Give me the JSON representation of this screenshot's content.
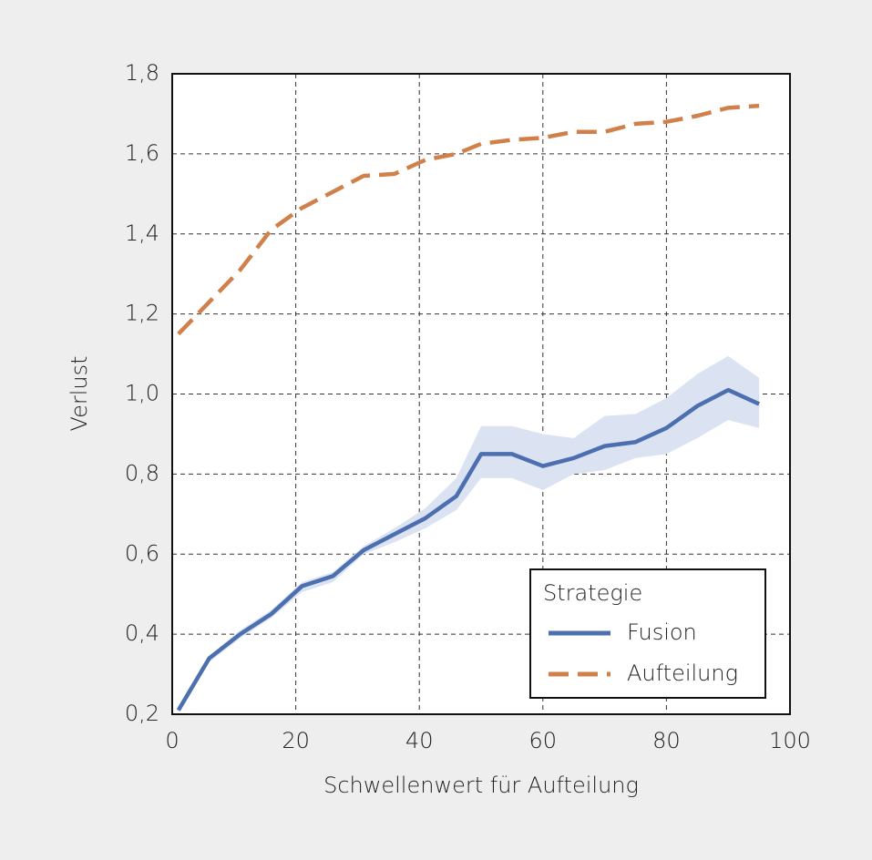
{
  "chart_data": {
    "type": "line",
    "x_label": "Schwellenwert für Aufteilung",
    "y_label": "Verlust",
    "x": [
      1,
      6,
      11,
      16,
      21,
      26,
      31,
      36,
      41,
      46,
      50,
      55,
      60,
      65,
      70,
      75,
      80,
      85,
      90,
      95
    ],
    "series": [
      {
        "name": "Fusion",
        "color": "#4c6faf",
        "dash": false,
        "band_color": "#dbe2f2",
        "values": [
          0.21,
          0.34,
          0.4,
          0.45,
          0.52,
          0.545,
          0.61,
          0.65,
          0.69,
          0.745,
          0.85,
          0.85,
          0.82,
          0.84,
          0.87,
          0.88,
          0.915,
          0.97,
          1.01,
          0.975
        ],
        "lower": [
          0.21,
          0.33,
          0.39,
          0.44,
          0.505,
          0.53,
          0.6,
          0.63,
          0.665,
          0.71,
          0.79,
          0.79,
          0.76,
          0.8,
          0.81,
          0.84,
          0.85,
          0.89,
          0.935,
          0.915
        ],
        "upper": [
          0.21,
          0.345,
          0.41,
          0.46,
          0.53,
          0.555,
          0.62,
          0.665,
          0.715,
          0.79,
          0.92,
          0.92,
          0.9,
          0.89,
          0.945,
          0.95,
          0.99,
          1.05,
          1.095,
          1.04
        ]
      },
      {
        "name": "Aufteilung",
        "color": "#d0804a",
        "dash": true,
        "values": [
          1.15,
          1.23,
          1.31,
          1.41,
          1.465,
          1.505,
          1.545,
          1.55,
          1.585,
          1.6,
          1.625,
          1.635,
          1.64,
          1.655,
          1.655,
          1.675,
          1.68,
          1.695,
          1.715,
          1.72
        ]
      }
    ],
    "xlim": [
      0,
      100
    ],
    "xticks": [
      0,
      20,
      40,
      60,
      80,
      100
    ],
    "ylim": [
      0.2,
      1.8
    ],
    "yticks": [
      {
        "value": 0.2,
        "label": "0,2"
      },
      {
        "value": 0.4,
        "label": "0,4"
      },
      {
        "value": 0.6,
        "label": "0,6"
      },
      {
        "value": 0.8,
        "label": "0,8"
      },
      {
        "value": 1.0,
        "label": "1,0"
      },
      {
        "value": 1.2,
        "label": "1,2"
      },
      {
        "value": 1.4,
        "label": "1,4"
      },
      {
        "value": 1.6,
        "label": "1,6"
      },
      {
        "value": 1.8,
        "label": "1,8"
      }
    ],
    "grid": true,
    "legend_title": "Strategie",
    "legend_position": "lower right"
  }
}
